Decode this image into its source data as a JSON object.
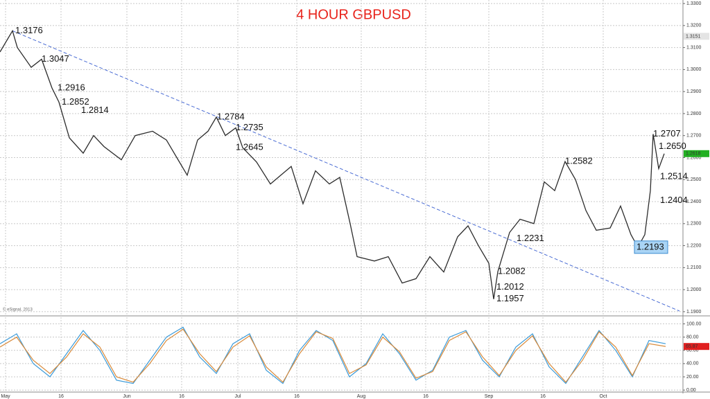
{
  "chart_data": [
    {
      "type": "line",
      "title": "4 HOUR GBPUSD",
      "watermark": "© eSignal, 2013",
      "color": "#2b2b2b",
      "x": [
        0,
        18,
        25,
        45,
        60,
        75,
        85,
        100,
        120,
        135,
        150,
        175,
        195,
        220,
        240,
        255,
        270,
        285,
        300,
        312,
        325,
        340,
        350,
        370,
        390,
        420,
        437,
        455,
        475,
        490,
        505,
        515,
        540,
        560,
        580,
        600,
        620,
        640,
        660,
        675,
        690,
        705,
        712,
        718,
        735,
        750,
        770,
        785,
        800,
        815,
        830,
        845,
        860,
        880,
        895,
        910,
        920,
        930,
        938,
        942,
        950,
        958
      ],
      "values": [
        1.308,
        1.3176,
        1.31,
        1.301,
        1.3047,
        1.2916,
        1.2852,
        1.269,
        1.262,
        1.27,
        1.265,
        1.259,
        1.27,
        1.272,
        1.268,
        1.26,
        1.252,
        1.268,
        1.272,
        1.2784,
        1.27,
        1.2735,
        1.2645,
        1.258,
        1.248,
        1.256,
        1.239,
        1.254,
        1.248,
        1.251,
        1.23,
        1.215,
        1.213,
        1.215,
        1.203,
        1.205,
        1.215,
        1.208,
        1.224,
        1.229,
        1.22,
        1.212,
        1.1957,
        1.2082,
        1.226,
        1.232,
        1.23,
        1.249,
        1.245,
        1.2582,
        1.25,
        1.236,
        1.227,
        1.228,
        1.238,
        1.225,
        1.2193,
        1.225,
        1.245,
        1.2707,
        1.255,
        1.2618
      ],
      "trendline": {
        "x": [
          18,
          980
        ],
        "values": [
          1.3176,
          1.1903
        ],
        "color": "#4a6cd4"
      },
      "annotations": [
        {
          "x": 22,
          "value": 1.3176,
          "label": "1.3176"
        },
        {
          "x": 60,
          "value": 1.3047,
          "label": "1.3047"
        },
        {
          "x": 83,
          "value": 1.2916,
          "label": "1.2916"
        },
        {
          "x": 89,
          "value": 1.2852,
          "label": "1.2852"
        },
        {
          "x": 117,
          "value": 1.2814,
          "label": "1.2814"
        },
        {
          "x": 313,
          "value": 1.2784,
          "label": "1.2784"
        },
        {
          "x": 340,
          "value": 1.2735,
          "label": "1.2735"
        },
        {
          "x": 340,
          "value": 1.2645,
          "label": "1.2645"
        },
        {
          "x": 815,
          "value": 1.2582,
          "label": "1.2582"
        },
        {
          "x": 745,
          "value": 1.2231,
          "label": "1.2231"
        },
        {
          "x": 718,
          "value": 1.2082,
          "label": "1.2082"
        },
        {
          "x": 716,
          "value": 1.2012,
          "label": "1.2012"
        },
        {
          "x": 716,
          "value": 1.1957,
          "label": "1.1957"
        },
        {
          "x": 942,
          "value": 1.2707,
          "label": "1.2707"
        },
        {
          "x": 950,
          "value": 1.265,
          "label": "1.2650"
        },
        {
          "x": 952,
          "value": 1.2514,
          "label": "1.2514"
        },
        {
          "x": 952,
          "value": 1.2404,
          "label": "1.2404"
        },
        {
          "x": 918,
          "value": 1.2193,
          "label": "1.2193",
          "highlight": true
        }
      ],
      "price_markers": [
        {
          "value": 1.3151,
          "label": "1.3151",
          "color": "#e4e4e4"
        },
        {
          "value": 1.2618,
          "label": "1.2618",
          "color": "#22b022"
        }
      ],
      "xlim": [
        0,
        985
      ],
      "xticks": [
        {
          "value": 8,
          "label": "May"
        },
        {
          "value": 88,
          "label": "16"
        },
        {
          "value": 183,
          "label": "Jun"
        },
        {
          "value": 262,
          "label": "16"
        },
        {
          "value": 343,
          "label": "Jul"
        },
        {
          "value": 428,
          "label": "16"
        },
        {
          "value": 521,
          "label": "Aug"
        },
        {
          "value": 614,
          "label": "16"
        },
        {
          "value": 705,
          "label": "Sep"
        },
        {
          "value": 783,
          "label": "16"
        },
        {
          "value": 870,
          "label": "Oct"
        }
      ],
      "ylim": [
        1.1884,
        1.3316
      ],
      "yticks": [
        {
          "value": 1.19,
          "label": "1.1900"
        },
        {
          "value": 1.2,
          "label": "1.2000"
        },
        {
          "value": 1.21,
          "label": "1.2100"
        },
        {
          "value": 1.22,
          "label": "1.2200"
        },
        {
          "value": 1.23,
          "label": "1.2300"
        },
        {
          "value": 1.24,
          "label": "1.2400"
        },
        {
          "value": 1.25,
          "label": "1.2500"
        },
        {
          "value": 1.26,
          "label": "1.2600"
        },
        {
          "value": 1.27,
          "label": "1.2700"
        },
        {
          "value": 1.28,
          "label": "1.2800"
        },
        {
          "value": 1.29,
          "label": "1.2900"
        },
        {
          "value": 1.3,
          "label": "1.3000"
        },
        {
          "value": 1.31,
          "label": "1.3100"
        },
        {
          "value": 1.32,
          "label": "1.3200"
        },
        {
          "value": 1.33,
          "label": "1.3300"
        }
      ],
      "grid": true
    },
    {
      "type": "line",
      "x": [
        0,
        24,
        48,
        72,
        96,
        120,
        144,
        168,
        192,
        216,
        240,
        264,
        288,
        312,
        336,
        360,
        384,
        408,
        432,
        456,
        480,
        504,
        528,
        552,
        576,
        600,
        624,
        648,
        672,
        696,
        720,
        744,
        768,
        792,
        816,
        840,
        864,
        888,
        912,
        936,
        960
      ],
      "series": [
        {
          "color": "#3a9ad9",
          "values": [
            70,
            85,
            40,
            20,
            55,
            90,
            60,
            15,
            10,
            45,
            80,
            95,
            50,
            25,
            70,
            85,
            30,
            10,
            60,
            90,
            75,
            20,
            40,
            85,
            55,
            15,
            30,
            80,
            90,
            45,
            20,
            65,
            85,
            35,
            10,
            50,
            90,
            60,
            20,
            75,
            70
          ]
        },
        {
          "color": "#d98a3a",
          "values": [
            65,
            80,
            45,
            25,
            50,
            85,
            65,
            20,
            12,
            40,
            75,
            92,
            55,
            28,
            65,
            82,
            35,
            12,
            55,
            88,
            78,
            25,
            38,
            80,
            58,
            18,
            28,
            75,
            88,
            50,
            22,
            60,
            82,
            40,
            12,
            45,
            88,
            65,
            22,
            70,
            66
          ]
        }
      ],
      "price_markers": [
        {
          "value": 65.87,
          "label": "65.87",
          "color": "#e02020"
        }
      ],
      "xlim": [
        0,
        985
      ],
      "ylim": [
        -3,
        110
      ],
      "yticks": [
        {
          "value": 0,
          "label": "0.00"
        },
        {
          "value": 20,
          "label": "20.00"
        },
        {
          "value": 40,
          "label": "40.00"
        },
        {
          "value": 60,
          "label": "60.00"
        },
        {
          "value": 80,
          "label": "80.00"
        },
        {
          "value": 100,
          "label": "100.00"
        }
      ],
      "grid": true
    }
  ]
}
